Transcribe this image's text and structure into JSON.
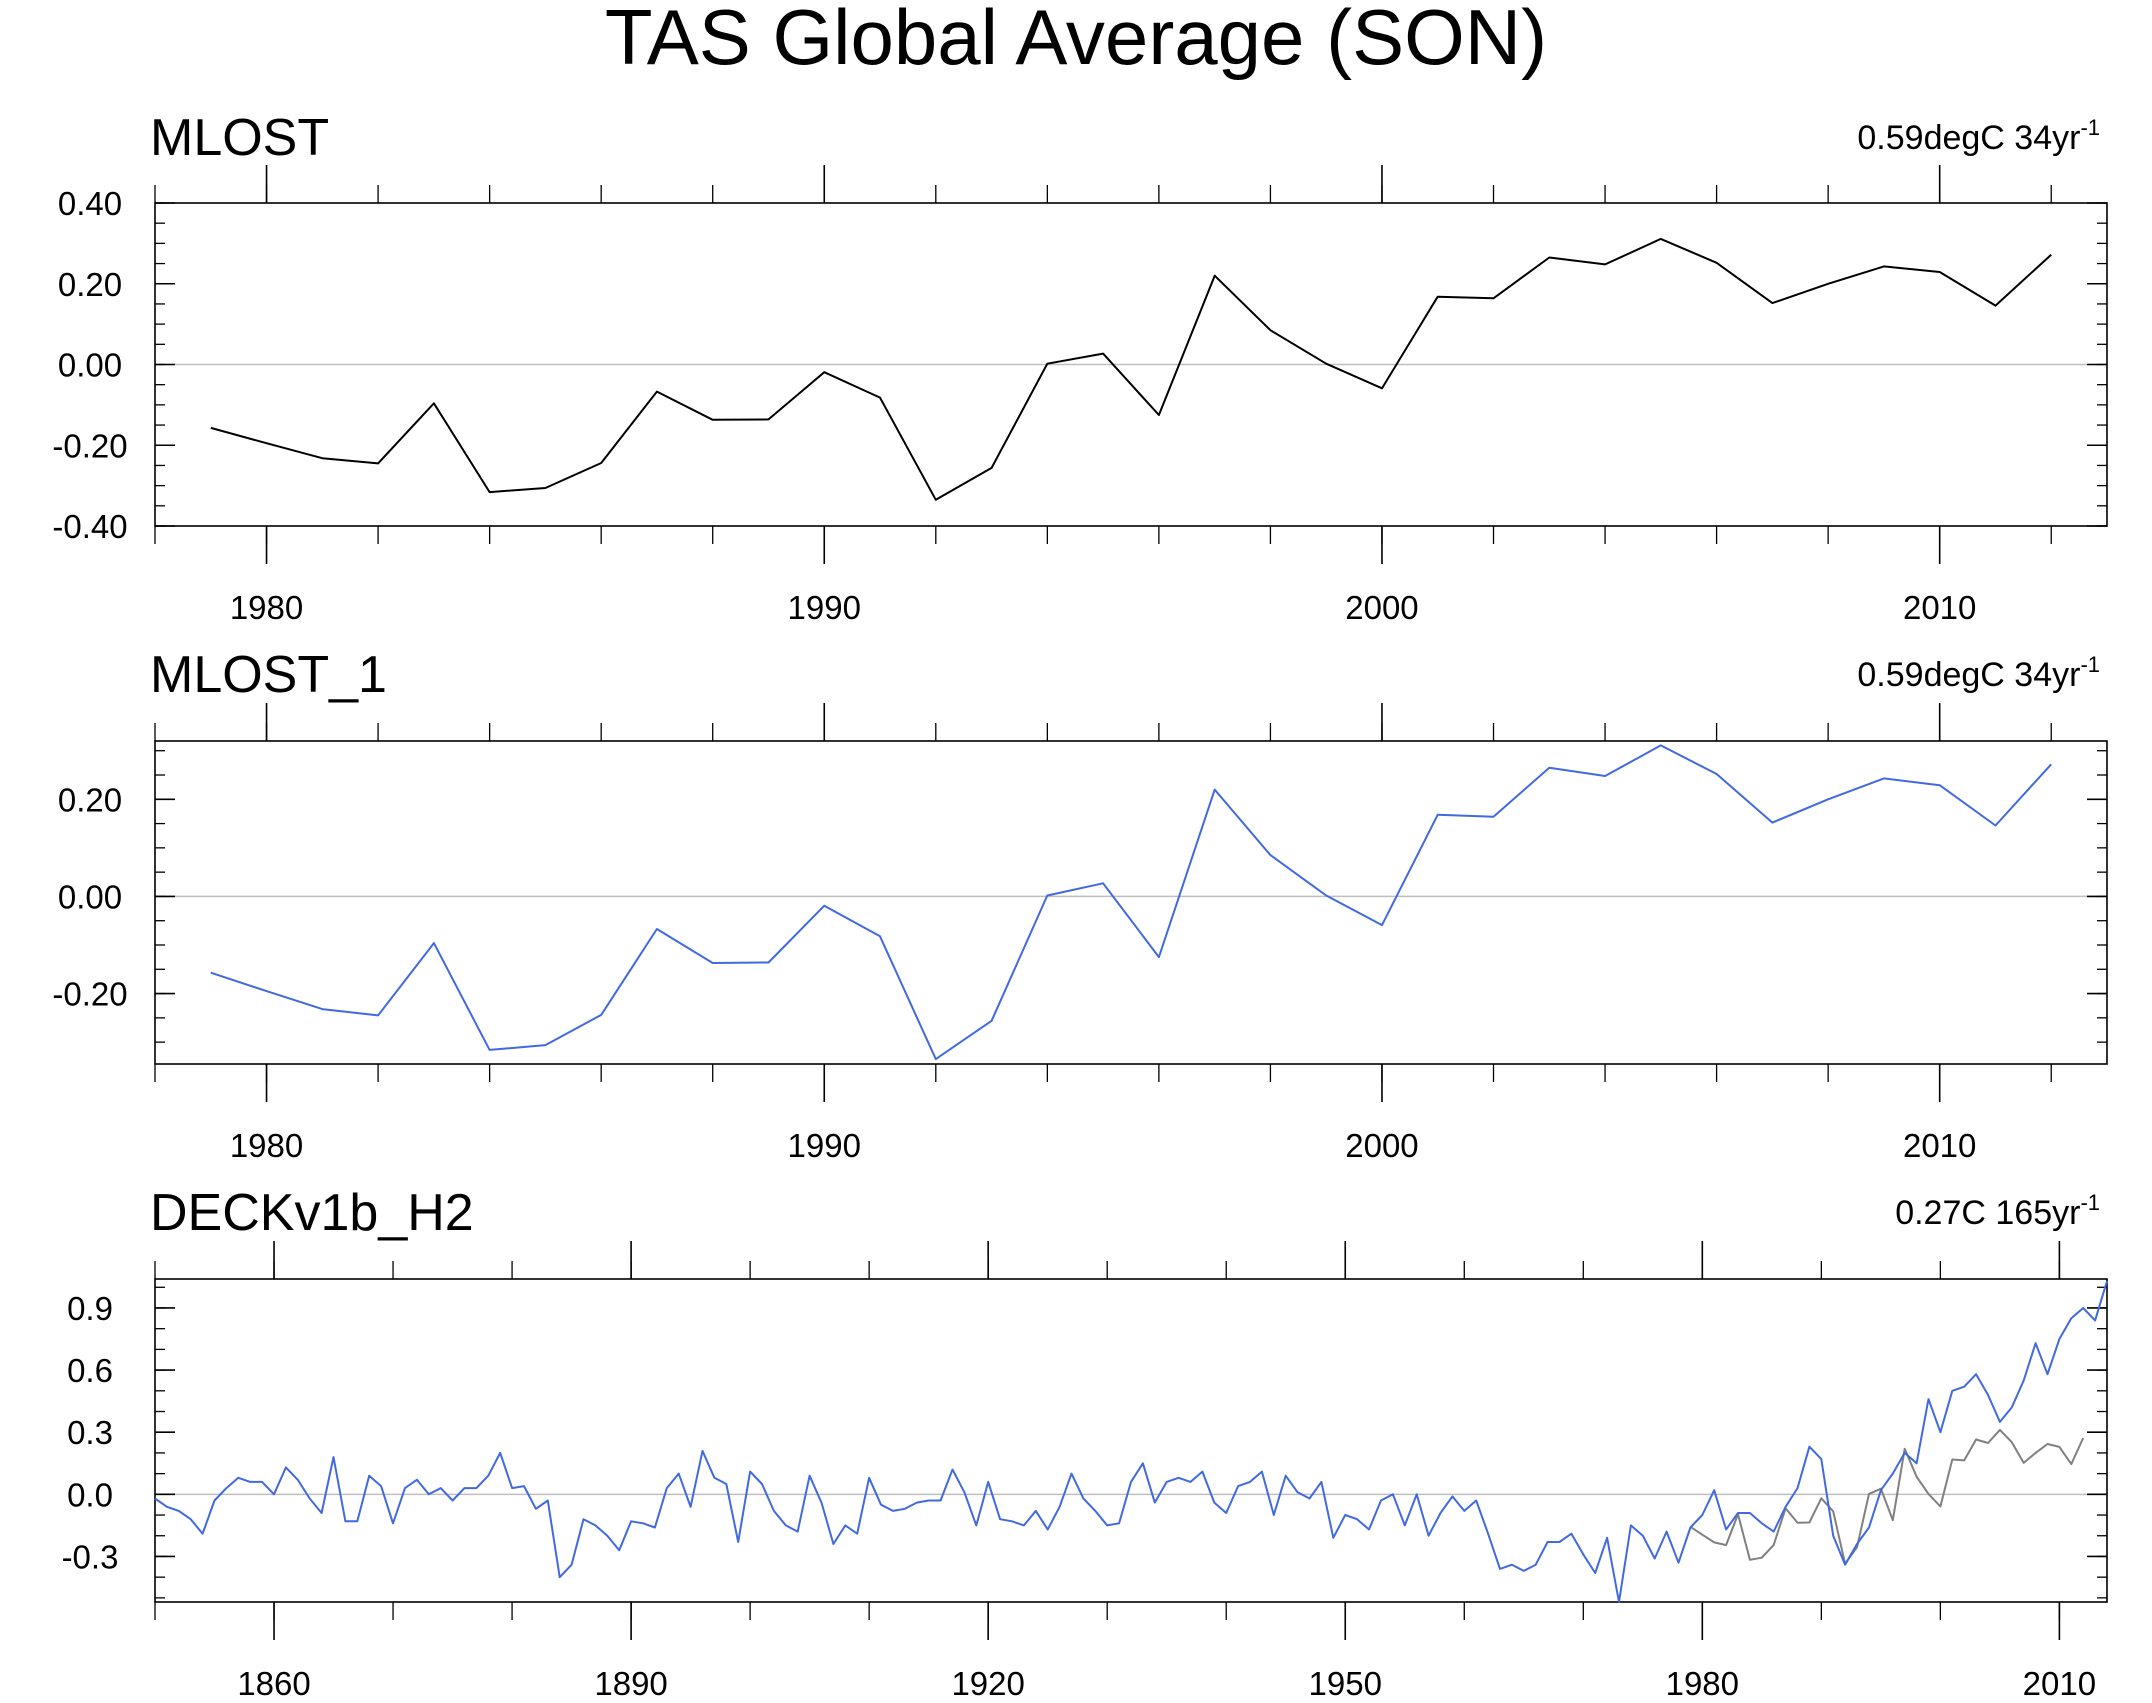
{
  "title": "TAS Global Average (SON)",
  "colors": {
    "blue": "#4169e1",
    "black": "#000000",
    "gray": "#808080",
    "zero_line": "#bfbfbf"
  },
  "panels": [
    {
      "id": "mlost",
      "title": "MLOST",
      "trend": {
        "text": "0.59degC 34yr",
        "exp": "-1"
      }
    },
    {
      "id": "mlost_1",
      "title": "MLOST_1",
      "trend": {
        "text": "0.59degC 34yr",
        "exp": "-1"
      }
    },
    {
      "id": "deck",
      "title": "DECKv1b_H2",
      "trend": {
        "text": "0.27C 165yr",
        "exp": "-1"
      }
    }
  ],
  "chart_data": [
    {
      "type": "line",
      "title": "MLOST",
      "xlim": [
        1978,
        2013
      ],
      "ylim": [
        -0.4,
        0.4
      ],
      "xticks": [
        1980,
        1990,
        2000,
        2010
      ],
      "xtick_labels": [
        "1980",
        "1990",
        "2000",
        "2010"
      ],
      "yticks": [
        -0.4,
        -0.2,
        0.0,
        0.2,
        0.4
      ],
      "ytick_labels": [
        "-0.40",
        "-0.20",
        "0.00",
        "0.20",
        "0.40"
      ],
      "reference_line": 0,
      "series": [
        {
          "name": "MLOST",
          "color": "#000000",
          "x": [
            1979,
            1980,
            1981,
            1982,
            1983,
            1984,
            1985,
            1986,
            1987,
            1988,
            1989,
            1990,
            1991,
            1992,
            1993,
            1994,
            1995,
            1996,
            1997,
            1998,
            1999,
            2000,
            2001,
            2002,
            2003,
            2004,
            2005,
            2006,
            2007,
            2008,
            2009,
            2010,
            2011,
            2012
          ],
          "values": [
            -0.157,
            -0.195,
            -0.232,
            -0.245,
            -0.096,
            -0.316,
            -0.306,
            -0.244,
            -0.067,
            -0.137,
            -0.136,
            -0.019,
            -0.082,
            -0.335,
            -0.256,
            0.002,
            0.027,
            -0.125,
            0.22,
            0.085,
            0.002,
            -0.059,
            0.168,
            0.164,
            0.265,
            0.248,
            0.311,
            0.252,
            0.152,
            0.2,
            0.243,
            0.229,
            0.146,
            0.272
          ]
        }
      ]
    },
    {
      "type": "line",
      "title": "MLOST_1",
      "xlim": [
        1978,
        2013
      ],
      "ylim": [
        -0.345,
        0.32
      ],
      "xticks": [
        1980,
        1990,
        2000,
        2010
      ],
      "xtick_labels": [
        "1980",
        "1990",
        "2000",
        "2010"
      ],
      "yticks": [
        -0.2,
        0.0,
        0.2
      ],
      "ytick_labels": [
        "-0.20",
        "0.00",
        "0.20"
      ],
      "reference_line": 0,
      "series": [
        {
          "name": "MLOST_1",
          "color": "#4169e1",
          "x": [
            1979,
            1980,
            1981,
            1982,
            1983,
            1984,
            1985,
            1986,
            1987,
            1988,
            1989,
            1990,
            1991,
            1992,
            1993,
            1994,
            1995,
            1996,
            1997,
            1998,
            1999,
            2000,
            2001,
            2002,
            2003,
            2004,
            2005,
            2006,
            2007,
            2008,
            2009,
            2010,
            2011,
            2012
          ],
          "values": [
            -0.157,
            -0.195,
            -0.232,
            -0.245,
            -0.096,
            -0.316,
            -0.306,
            -0.244,
            -0.067,
            -0.137,
            -0.136,
            -0.019,
            -0.082,
            -0.335,
            -0.256,
            0.002,
            0.027,
            -0.125,
            0.22,
            0.085,
            0.002,
            -0.059,
            0.168,
            0.164,
            0.265,
            0.248,
            0.311,
            0.252,
            0.152,
            0.2,
            0.243,
            0.229,
            0.146,
            0.272
          ]
        }
      ]
    },
    {
      "type": "line",
      "title": "DECKv1b_H2",
      "xlim": [
        1850,
        2014
      ],
      "ylim": [
        -0.52,
        1.04
      ],
      "xticks": [
        1860,
        1890,
        1920,
        1950,
        1980,
        2010
      ],
      "xtick_labels": [
        "1860",
        "1890",
        "1920",
        "1950",
        "1980",
        "2010"
      ],
      "yticks": [
        -0.3,
        0.0,
        0.3,
        0.6,
        0.9
      ],
      "ytick_labels": [
        "-0.3",
        "0.0",
        "0.3",
        "0.6",
        "0.9"
      ],
      "reference_line": 0,
      "series": [
        {
          "name": "DECKv1b_H2",
          "color": "#4169e1",
          "x_start": 1850,
          "values": [
            -0.02,
            -0.06,
            -0.08,
            -0.12,
            -0.19,
            -0.03,
            0.03,
            0.08,
            0.06,
            0.06,
            0.0,
            0.13,
            0.07,
            -0.02,
            -0.09,
            0.18,
            -0.13,
            -0.13,
            0.09,
            0.04,
            -0.14,
            0.03,
            0.07,
            0.0,
            0.03,
            -0.03,
            0.03,
            0.03,
            0.09,
            0.2,
            0.03,
            0.04,
            -0.07,
            -0.03,
            -0.4,
            -0.34,
            -0.12,
            -0.15,
            -0.2,
            -0.27,
            -0.13,
            -0.14,
            -0.16,
            0.03,
            0.1,
            -0.06,
            0.21,
            0.08,
            0.05,
            -0.23,
            0.11,
            0.05,
            -0.08,
            -0.15,
            -0.18,
            0.09,
            -0.04,
            -0.24,
            -0.15,
            -0.19,
            0.08,
            -0.05,
            -0.08,
            -0.07,
            -0.04,
            -0.03,
            -0.03,
            0.12,
            0.01,
            -0.15,
            0.06,
            -0.12,
            -0.13,
            -0.15,
            -0.08,
            -0.17,
            -0.06,
            0.1,
            -0.02,
            -0.08,
            -0.15,
            -0.14,
            0.06,
            0.15,
            -0.04,
            0.06,
            0.08,
            0.06,
            0.11,
            -0.04,
            -0.09,
            0.04,
            0.06,
            0.11,
            -0.1,
            0.09,
            0.01,
            -0.02,
            0.06,
            -0.21,
            -0.1,
            -0.12,
            -0.17,
            -0.03,
            0.0,
            -0.15,
            0.0,
            -0.2,
            -0.09,
            -0.01,
            -0.08,
            -0.03,
            -0.19,
            -0.36,
            -0.34,
            -0.37,
            -0.34,
            -0.23,
            -0.23,
            -0.19,
            -0.29,
            -0.38,
            -0.21,
            -0.52,
            -0.15,
            -0.2,
            -0.31,
            -0.18,
            -0.33,
            -0.16,
            -0.1,
            0.02,
            -0.17,
            -0.09,
            -0.09,
            -0.14,
            -0.18,
            -0.06,
            0.03,
            0.23,
            0.17,
            -0.2,
            -0.34,
            -0.24,
            -0.16,
            0.02,
            0.1,
            0.2,
            0.15,
            0.46,
            0.3,
            0.5,
            0.52,
            0.58,
            0.48,
            0.35,
            0.42,
            0.55,
            0.73,
            0.58,
            0.75,
            0.85,
            0.9,
            0.84,
            1.03
          ]
        },
        {
          "name": "MLOST",
          "color": "#808080",
          "x_start": 1979,
          "values": [
            -0.157,
            -0.195,
            -0.232,
            -0.245,
            -0.096,
            -0.316,
            -0.306,
            -0.244,
            -0.067,
            -0.137,
            -0.136,
            -0.019,
            -0.082,
            -0.335,
            -0.256,
            0.002,
            0.027,
            -0.125,
            0.22,
            0.085,
            0.002,
            -0.059,
            0.168,
            0.164,
            0.265,
            0.248,
            0.311,
            0.252,
            0.152,
            0.2,
            0.243,
            0.229,
            0.146,
            0.272
          ]
        }
      ]
    }
  ]
}
